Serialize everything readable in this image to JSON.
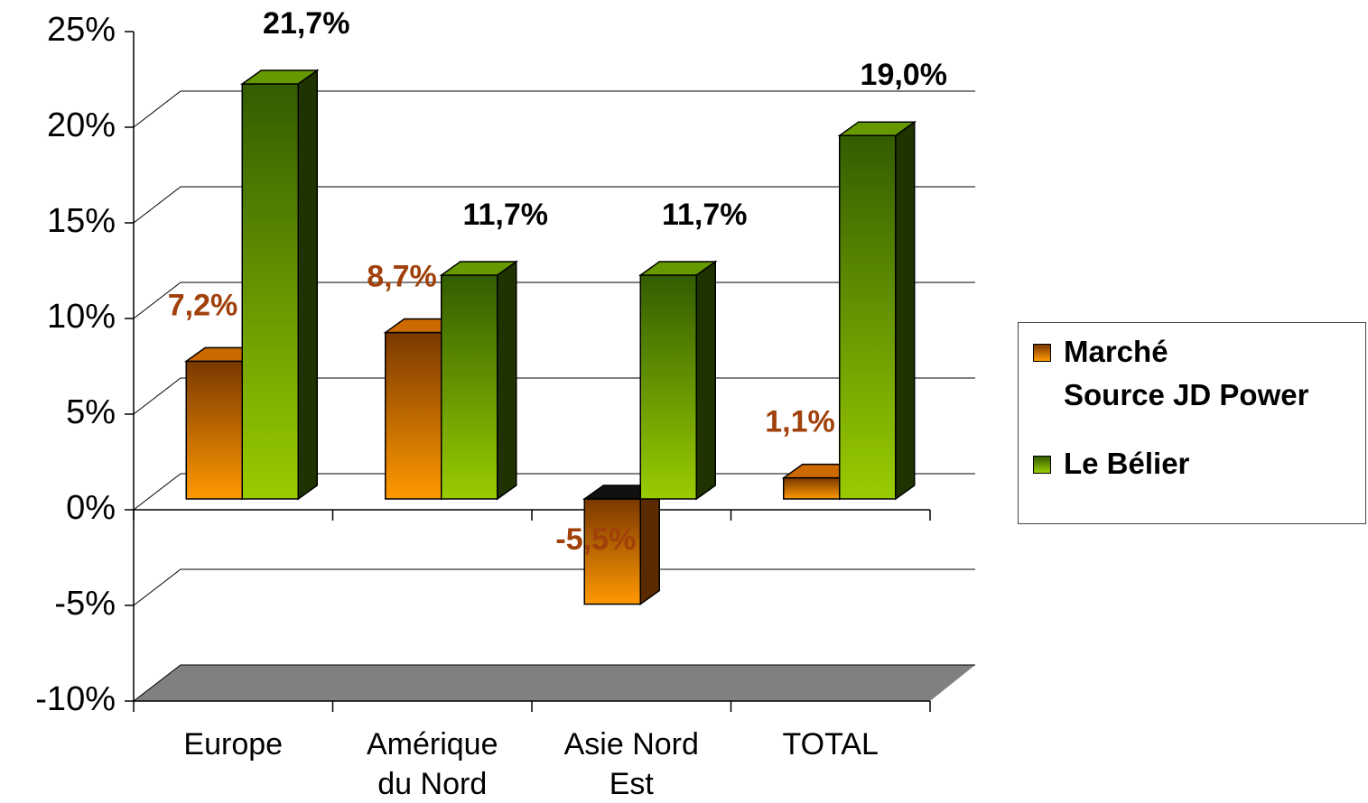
{
  "chart_data": {
    "type": "bar3d",
    "categories": [
      "Europe",
      "Amérique\ndu Nord",
      "Asie Nord\nEst",
      "TOTAL"
    ],
    "series": [
      {
        "name": "Marché\nSource JD Power",
        "color": "#ff9900",
        "values": [
          7.2,
          8.7,
          -5.5,
          1.1
        ],
        "value_labels": [
          "7,2%",
          "8,7%",
          "-5,5%",
          "1,1%"
        ]
      },
      {
        "name": "Le Bélier",
        "color": "#99cc00",
        "values": [
          21.7,
          11.7,
          11.7,
          19.0
        ],
        "value_labels": [
          "21,7%",
          "11,7%",
          "11,7%",
          "19,0%"
        ]
      }
    ],
    "ylim": [
      -10,
      25
    ],
    "yticks": [
      {
        "value": -10,
        "label": "-10%"
      },
      {
        "value": -5,
        "label": "-5%"
      },
      {
        "value": 0,
        "label": "0%"
      },
      {
        "value": 5,
        "label": "5%"
      },
      {
        "value": 10,
        "label": "10%"
      },
      {
        "value": 15,
        "label": "15%"
      },
      {
        "value": 20,
        "label": "20%"
      },
      {
        "value": 25,
        "label": "25%"
      }
    ],
    "grid": true,
    "legend": "right"
  }
}
